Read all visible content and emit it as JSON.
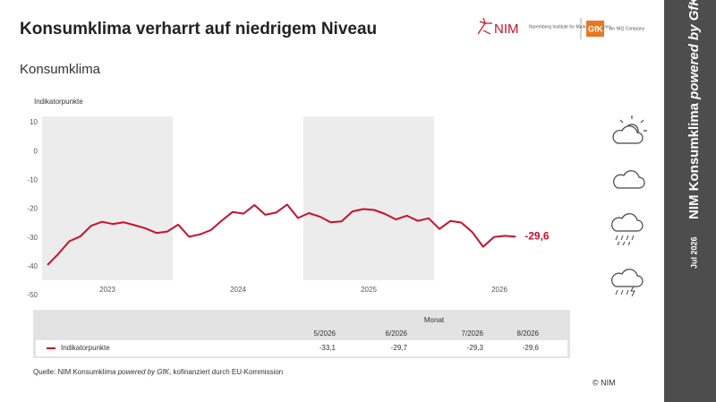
{
  "header": {
    "title": "Konsumklima verharrt auf niedrigem Niveau",
    "logo_nim": "NIM",
    "logo_nim_sub": "Nuremberg Institute for Market Decisions",
    "logo_gfk": "GfK",
    "logo_gfk_sub": "An NIQ Company"
  },
  "chart_data": {
    "type": "line",
    "title": "Konsumklima",
    "y_label": "Indikatorpunkte",
    "color": "#c8102e",
    "x": [
      2023.042,
      2023.125,
      2023.208,
      2023.292,
      2023.375,
      2023.458,
      2023.542,
      2023.625,
      2023.708,
      2023.792,
      2023.875,
      2023.958,
      2024.042,
      2024.125,
      2024.208,
      2024.292,
      2024.375,
      2024.458,
      2024.542,
      2024.625,
      2024.708,
      2024.792,
      2024.875,
      2024.958,
      2025.042,
      2025.125,
      2025.208,
      2025.292,
      2025.375,
      2025.458,
      2025.542,
      2025.625,
      2025.708,
      2025.792,
      2025.875,
      2025.958,
      2026.042,
      2026.125,
      2026.208,
      2026.292,
      2026.375,
      2026.458,
      2026.542,
      2026.625
    ],
    "values": [
      -39.4,
      -35.5,
      -31.2,
      -29.5,
      -25.8,
      -24.4,
      -25.2,
      -24.6,
      -25.6,
      -26.7,
      -28.3,
      -27.8,
      -25.4,
      -29.6,
      -28.8,
      -27.3,
      -24.0,
      -21.0,
      -21.6,
      -18.6,
      -22.0,
      -21.2,
      -18.4,
      -23.1,
      -21.4,
      -22.6,
      -24.6,
      -24.3,
      -20.8,
      -20.0,
      -20.3,
      -21.7,
      -23.6,
      -22.3,
      -24.1,
      -23.2,
      -26.9,
      -24.1,
      -24.7,
      -28.0,
      -33.1,
      -29.7,
      -29.3,
      -29.6
    ],
    "value_labels": [
      null,
      null,
      null,
      null,
      null,
      null,
      null,
      null,
      null,
      null,
      null,
      null,
      null,
      null,
      null,
      null,
      null,
      null,
      null,
      null,
      null,
      null,
      null,
      null,
      null,
      null,
      null,
      null,
      null,
      null,
      null,
      null,
      null,
      null,
      null,
      null,
      null,
      null,
      null,
      null,
      null,
      null,
      null,
      "-29,6"
    ],
    "xlim": [
      2023,
      2027
    ],
    "xticks": [
      {
        "value": 2023.5,
        "label": "2023"
      },
      {
        "value": 2024.5,
        "label": "2024"
      },
      {
        "value": 2025.5,
        "label": "2025"
      },
      {
        "value": 2026.5,
        "label": "2026"
      }
    ],
    "ylim": [
      -50,
      10
    ],
    "yticks": [
      10,
      0,
      -10,
      -20,
      -30,
      -40,
      -50
    ],
    "grid": false
  },
  "table": {
    "group_header": "Monat",
    "columns": [
      "5/2026",
      "6/2026",
      "7/2026",
      "8/2026"
    ],
    "row_label": "Indikatorpunkte",
    "cells": [
      "-33,1",
      "-29,7",
      "-29,3",
      "-29,6"
    ]
  },
  "footer": {
    "source_prefix": "Quelle: NIM Konsumklima ",
    "source_italic": "powered by GfK",
    "source_suffix": ", kofinanziert durch EU-Kommission",
    "copyright": "© NIM"
  },
  "sidebar": {
    "title": "NIM Konsumklima ",
    "title_italic": "powered by GfK",
    "date": "Jul 2026"
  }
}
